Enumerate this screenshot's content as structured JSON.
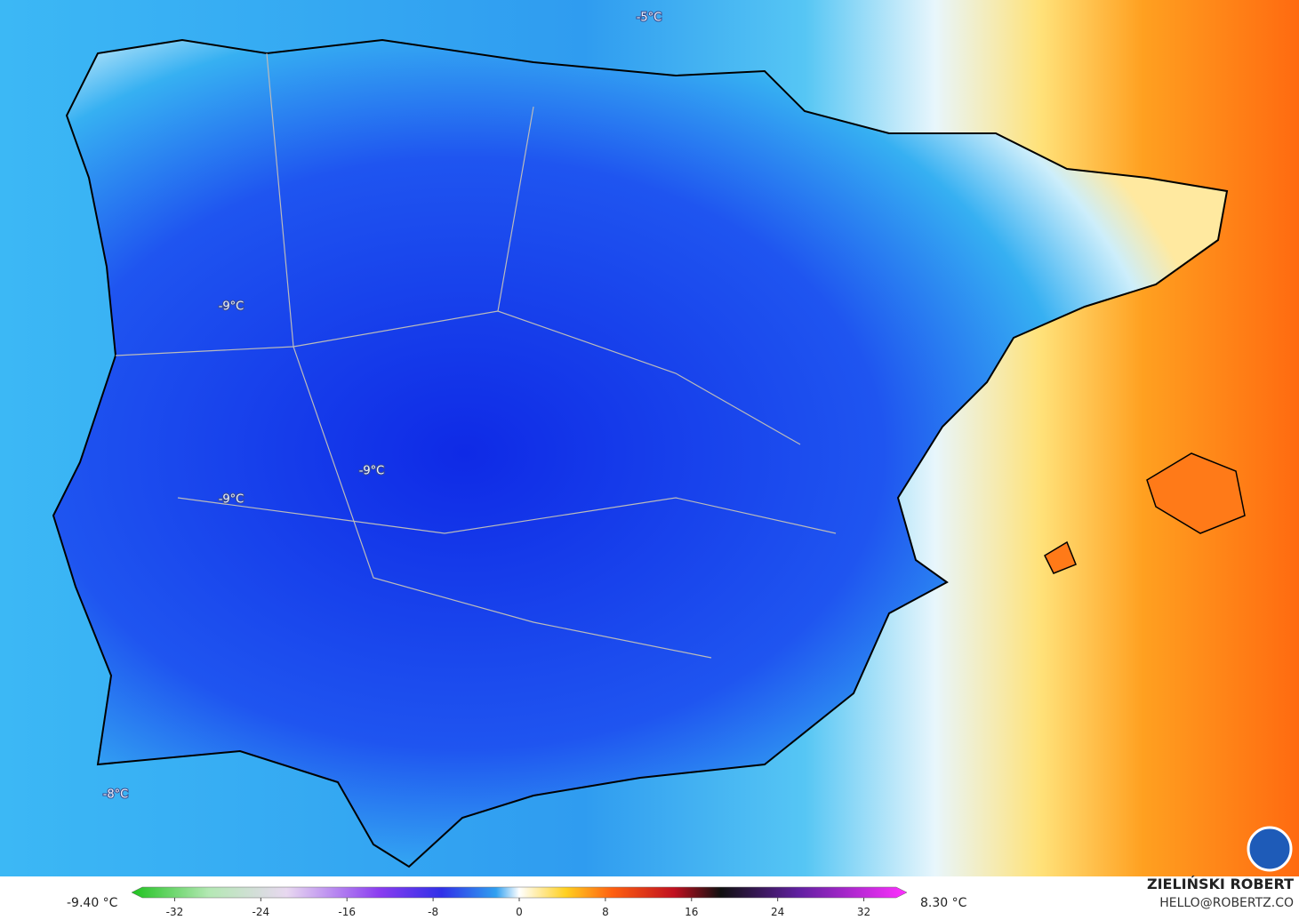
{
  "map": {
    "labels": [
      "-5°C",
      "-9°C",
      "-9°C",
      "-9°C",
      "-8°C"
    ]
  },
  "colorbar": {
    "min_label": "-9.40 °C",
    "max_label": "8.30 °C",
    "lim": [
      -36,
      36
    ],
    "ticks": [
      -32,
      -24,
      -16,
      -8,
      0,
      8,
      16,
      24,
      32
    ]
  },
  "credits": {
    "author": "ZIELIŃSKI ROBERT",
    "contact": "HELLO@ROBERTZ.CO"
  }
}
